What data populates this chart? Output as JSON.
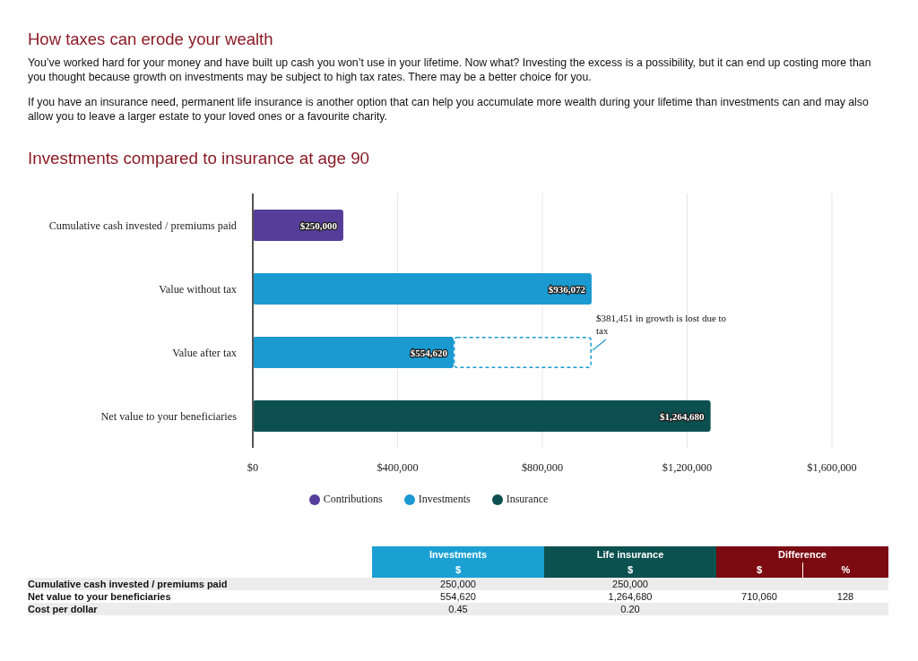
{
  "chart_data": [
    {
      "type": "bar",
      "orientation": "horizontal",
      "stacked": true,
      "title": "How taxes can erode your wealth",
      "subtitle": "Investments compared to insurance at age 90",
      "annotations": [
        "You’ve worked hard for your money and have built up cash you won’t use in your lifetime. Now what? Investing the excess is a possibility, but it can end up costing more than you thought because growth on investments may be subject to high tax rates. There may be a better choice for you.",
        "If you have an insurance need, permanent life insurance is another option that can help you accumulate more wealth during your lifetime than investments can and may also allow you to leave a larger estate to your loved ones or a favourite charity.",
        {
          "text": "$381,451 in growth is lost due to tax",
          "x": 936072,
          "y": "Value after tax"
        }
      ],
      "categories": [
        "Cumulative cash invested / premiums paid",
        "Value without tax",
        "Value after tax",
        "Net value to your beneficiaries"
      ],
      "series": [
        {
          "name": "Contributions",
          "color": "#563d9a",
          "values": [
            250000,
            null,
            null,
            null
          ],
          "value_labels": [
            "$250,000",
            null,
            null,
            null
          ]
        },
        {
          "name": "Investments",
          "color": "#1a9ad1",
          "values": [
            null,
            936072,
            554620,
            null
          ],
          "value_labels": [
            null,
            "$936,072",
            "$554,620",
            null
          ]
        },
        {
          "name": "Insurance",
          "color": "#0b4f50",
          "values": [
            null,
            null,
            null,
            1264680
          ],
          "value_labels": [
            null,
            null,
            null,
            "$1,264,680"
          ]
        },
        {
          "color": "#1a9ad1",
          "line_style": "dashed",
          "values": [
            null,
            null,
            381451,
            null
          ]
        }
      ],
      "xlim": [
        0,
        1600000
      ],
      "xticks": [
        {
          "value": 0,
          "label": "$0"
        },
        {
          "value": 400000,
          "label": "$400,000"
        },
        {
          "value": 800000,
          "label": "$800,000"
        },
        {
          "value": 1200000,
          "label": "$1,200,000"
        },
        {
          "value": 1600000,
          "label": "$1,600,000"
        }
      ],
      "grid": "x",
      "legend": "bottom"
    },
    {
      "type": "other",
      "annotations": [
        "Investments",
        "Life insurance",
        "Difference"
      ],
      "colors": [
        "#1ba0d3",
        "#0b5150",
        "#7b0a11"
      ],
      "categories": [
        "$",
        "$",
        "$",
        "%"
      ],
      "y_categories": [
        "Cumulative cash invested / premiums paid",
        "Net value to your beneficiaries",
        "Cost per dollar"
      ],
      "cell_labels": [
        [
          "250,000",
          "250,000",
          null,
          null
        ],
        [
          "554,620",
          "1,264,680",
          "710,060",
          "128"
        ],
        [
          "0.45",
          "0.20",
          null,
          null
        ]
      ]
    }
  ]
}
